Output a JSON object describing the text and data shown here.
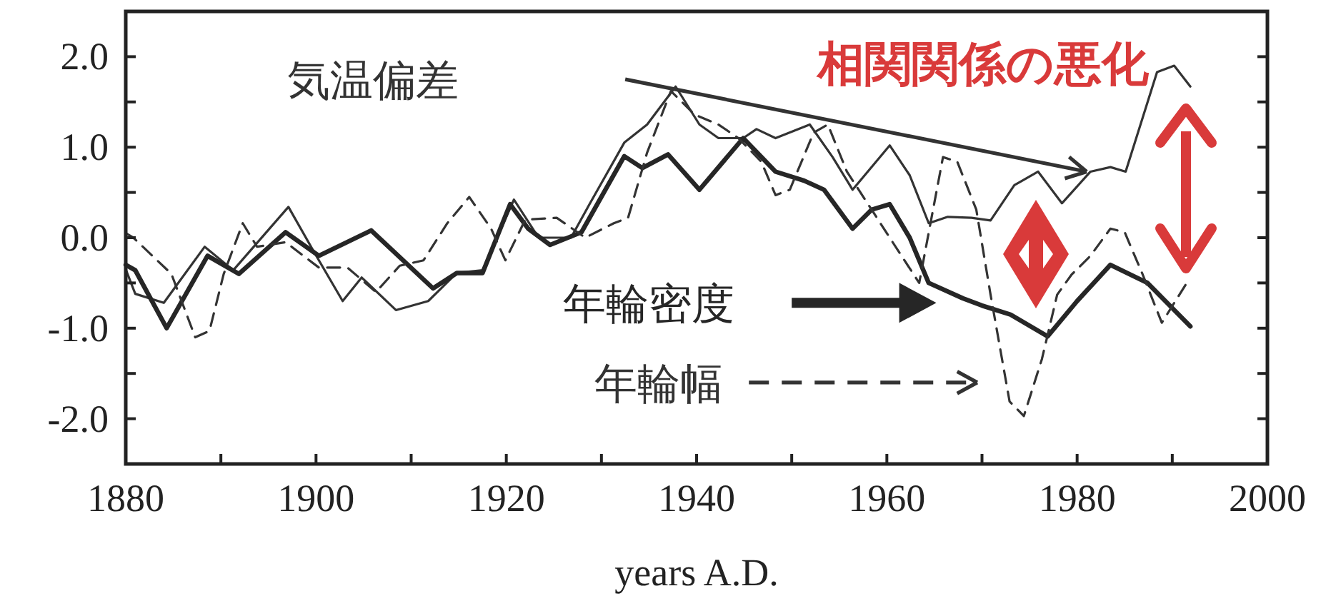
{
  "chart_data": {
    "type": "line",
    "xlabel": "years A.D.",
    "annotations": [
      "相関関係の悪化"
    ],
    "xlim": [
      1880,
      2000
    ],
    "ylim": [
      -2.5,
      2.5
    ],
    "xticks": [
      1880,
      {
        "value": 1890,
        "label": null
      },
      1900,
      {
        "value": 1910,
        "label": null
      },
      1920,
      {
        "value": 1930,
        "label": null
      },
      1940,
      {
        "value": 1950,
        "label": null
      },
      1960,
      {
        "value": 1970,
        "label": null
      },
      1980,
      {
        "value": 1990,
        "label": null
      },
      2000
    ],
    "yticks": [
      {
        "value": -2.5,
        "label": null
      },
      {
        "value": -2,
        "label": "-2.0"
      },
      {
        "value": -1.5,
        "label": null
      },
      {
        "value": -1,
        "label": "-1.0"
      },
      {
        "value": -0.5,
        "label": null
      },
      {
        "value": 0,
        "label": "0.0"
      },
      {
        "value": 0.5,
        "label": null
      },
      {
        "value": 1,
        "label": "1.0"
      },
      {
        "value": 1.5,
        "label": null
      },
      {
        "value": 2,
        "label": "2.0"
      },
      {
        "value": 2.5,
        "label": null
      }
    ],
    "grid": false,
    "legend": "center",
    "series": [
      {
        "name": "気温偏差",
        "color": "#333333",
        "line_style": "solid",
        "x": [
          1880,
          1881,
          1884,
          1888.3,
          1891.3,
          1897.1,
          1899.8,
          1902.8,
          1904.8,
          1908.4,
          1911.8,
          1914.8,
          1917.5,
          1920.8,
          1923.4,
          1926.8,
          1928.8,
          1932.4,
          1934.8,
          1937.8,
          1940.3,
          1942.3,
          1944.9,
          1946.3,
          1948.3,
          1951.9,
          1954.3,
          1956.4,
          1960.3,
          1962.4,
          1964.4,
          1966.4,
          1968.9,
          1970.9,
          1973.4,
          1975.9,
          1978.4,
          1981.4,
          1983.5,
          1985.1,
          1988.4,
          1990.2,
          1991.9
        ],
        "values": [
          -0.35,
          -0.62,
          -0.72,
          -0.1,
          -0.36,
          0.34,
          -0.16,
          -0.7,
          -0.44,
          -0.8,
          -0.7,
          -0.39,
          -0.36,
          0.42,
          0,
          0,
          0.38,
          1.05,
          1.25,
          1.67,
          1.25,
          1.1,
          1.1,
          1.2,
          1.1,
          1.25,
          0.89,
          0.53,
          1.02,
          0.69,
          0.16,
          0.23,
          0.22,
          0.19,
          0.58,
          0.73,
          0.38,
          0.73,
          0.78,
          0.73,
          1.83,
          1.9,
          1.67
        ]
      },
      {
        "name": "年輪密度",
        "color": "#262626",
        "line_style": "solid",
        "x": [
          1880,
          1881,
          1884.3,
          1888.6,
          1891.9,
          1896.8,
          1900.3,
          1905.8,
          1912.3,
          1914.8,
          1917.5,
          1920.4,
          1922.3,
          1924.6,
          1927.9,
          1932.4,
          1934.3,
          1937,
          1940.3,
          1944.9,
          1948.3,
          1951.3,
          1953.4,
          1956.4,
          1958.4,
          1960.3,
          1962.4,
          1964.4,
          1968,
          1970,
          1973,
          1976.9,
          1980,
          1983.5,
          1987.4,
          1991.9
        ],
        "values": [
          -0.3,
          -0.36,
          -1.0,
          -0.2,
          -0.4,
          0.06,
          -0.2,
          0.08,
          -0.56,
          -0.39,
          -0.39,
          0.37,
          0.1,
          -0.08,
          0.06,
          0.9,
          0.77,
          0.92,
          0.53,
          1.1,
          0.73,
          0.63,
          0.53,
          0.1,
          0.31,
          0.37,
          0,
          -0.5,
          -0.67,
          -0.75,
          -0.85,
          -1.09,
          -0.7,
          -0.3,
          -0.5,
          -0.98
        ]
      },
      {
        "name": "年輪幅",
        "color": "#333333",
        "line_style": "dashed",
        "x": [
          1880,
          1880.8,
          1884.8,
          1887.3,
          1888.8,
          1890.3,
          1892.3,
          1893.8,
          1896.8,
          1900.3,
          1903.3,
          1906.3,
          1908.8,
          1911.3,
          1913.8,
          1916.1,
          1918.4,
          1919.9,
          1922,
          1925.3,
          1928.3,
          1931.3,
          1932.8,
          1934.8,
          1937.3,
          1939.8,
          1942.3,
          1944.4,
          1946.8,
          1948.3,
          1949.8,
          1952.3,
          1953.8,
          1955.8,
          1958.4,
          1960.3,
          1963.4,
          1965.9,
          1967.4,
          1969.4,
          1970.9,
          1972.9,
          1974.4,
          1976.3,
          1977.9,
          1979.4,
          1981.4,
          1983.5,
          1985,
          1986.9,
          1988.9,
          1991.4
        ],
        "values": [
          0.05,
          0,
          -0.4,
          -1.1,
          -1.03,
          -0.4,
          0.16,
          -0.1,
          -0.05,
          -0.33,
          -0.33,
          -0.6,
          -0.31,
          -0.25,
          0.16,
          0.45,
          0.1,
          -0.25,
          0.2,
          0.22,
          0,
          0.16,
          0.22,
          0.94,
          1.62,
          1.36,
          1.25,
          1.1,
          0.84,
          0.47,
          0.53,
          1.16,
          1.25,
          0.73,
          0.31,
          0,
          -0.5,
          0.89,
          0.84,
          0.31,
          -0.63,
          -1.81,
          -1.97,
          -1.34,
          -0.63,
          -0.41,
          -0.2,
          0.1,
          0.06,
          -0.41,
          -0.94,
          -0.52
        ]
      }
    ]
  }
}
